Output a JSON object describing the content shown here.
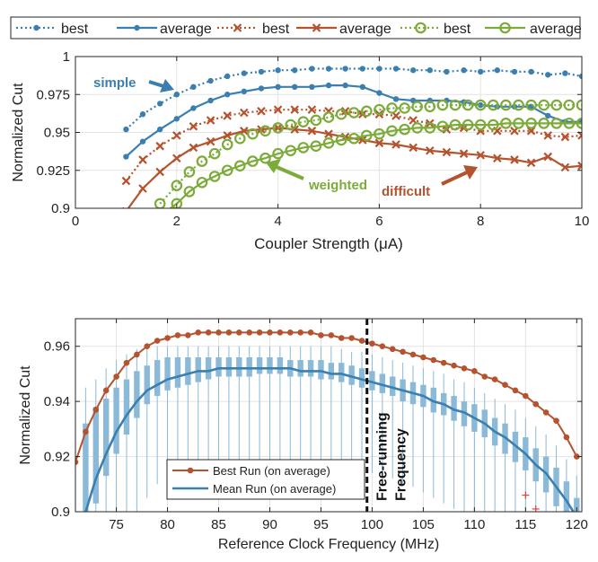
{
  "chart_data": [
    {
      "type": "line",
      "xlabel": "Coupler Strength (μA)",
      "ylabel": "Normalized Cut",
      "xlim": [
        0,
        10
      ],
      "ylim": [
        0.9,
        1.0
      ],
      "xticks": [
        0,
        2,
        4,
        6,
        8,
        10
      ],
      "xtick_labels": [
        "0",
        "2",
        "4",
        "6",
        "8",
        "10"
      ],
      "yticks": [
        0.9,
        0.925,
        0.95,
        0.975,
        1.0
      ],
      "ytick_labels": [
        "0.9",
        "0.925",
        "0.95",
        "0.975",
        "1"
      ],
      "legend_position": "top",
      "series": [
        {
          "name": "best",
          "group": "simple",
          "style": "dotted",
          "marker": "dot",
          "color": "#3b7fb0",
          "x": [
            1.0,
            1.33,
            1.67,
            2.0,
            2.33,
            2.67,
            3.0,
            3.33,
            3.67,
            4.0,
            4.33,
            4.67,
            5.0,
            5.33,
            5.67,
            6.0,
            6.33,
            6.67,
            7.0,
            7.33,
            7.67,
            8.0,
            8.33,
            8.67,
            9.0,
            9.33,
            9.67,
            10.0
          ],
          "y": [
            0.952,
            0.962,
            0.969,
            0.975,
            0.98,
            0.984,
            0.987,
            0.989,
            0.99,
            0.991,
            0.991,
            0.992,
            0.992,
            0.992,
            0.992,
            0.992,
            0.992,
            0.991,
            0.991,
            0.99,
            0.991,
            0.99,
            0.991,
            0.99,
            0.99,
            0.988,
            0.989,
            0.987
          ]
        },
        {
          "name": "average",
          "group": "simple",
          "style": "solid",
          "marker": "dot",
          "color": "#3b7fb0",
          "x": [
            1.0,
            1.33,
            1.67,
            2.0,
            2.33,
            2.67,
            3.0,
            3.33,
            3.67,
            4.0,
            4.33,
            4.67,
            5.0,
            5.33,
            5.67,
            6.0,
            6.33,
            6.67,
            7.0,
            7.33,
            7.67,
            8.0,
            8.33,
            8.67,
            9.0,
            9.33,
            9.67,
            10.0
          ],
          "y": [
            0.934,
            0.944,
            0.952,
            0.959,
            0.966,
            0.971,
            0.975,
            0.977,
            0.979,
            0.98,
            0.98,
            0.98,
            0.981,
            0.981,
            0.98,
            0.976,
            0.972,
            0.971,
            0.971,
            0.971,
            0.97,
            0.968,
            0.967,
            0.967,
            0.967,
            0.961,
            0.957,
            0.957
          ]
        },
        {
          "name": "best",
          "group": "difficult",
          "style": "dotted",
          "marker": "x",
          "color": "#b5532f",
          "x": [
            1.0,
            1.33,
            1.67,
            2.0,
            2.33,
            2.67,
            3.0,
            3.33,
            3.67,
            4.0,
            4.33,
            4.67,
            5.0,
            5.33,
            5.67,
            6.0,
            6.33,
            6.67,
            7.0,
            7.33,
            7.67,
            8.0,
            8.33,
            8.67,
            9.0,
            9.33,
            9.67,
            10.0
          ],
          "y": [
            0.918,
            0.932,
            0.941,
            0.948,
            0.954,
            0.958,
            0.961,
            0.963,
            0.964,
            0.965,
            0.965,
            0.965,
            0.964,
            0.964,
            0.962,
            0.962,
            0.961,
            0.958,
            0.956,
            0.952,
            0.953,
            0.951,
            0.951,
            0.951,
            0.951,
            0.948,
            0.947,
            0.948
          ]
        },
        {
          "name": "average",
          "group": "difficult",
          "style": "solid",
          "marker": "x",
          "color": "#b5532f",
          "x": [
            1.0,
            1.33,
            1.67,
            2.0,
            2.33,
            2.67,
            3.0,
            3.33,
            3.67,
            4.0,
            4.33,
            4.67,
            5.0,
            5.33,
            5.67,
            6.0,
            6.33,
            6.67,
            7.0,
            7.33,
            7.67,
            8.0,
            8.33,
            8.67,
            9.0,
            9.33,
            9.67,
            10.0
          ],
          "y": [
            0.898,
            0.913,
            0.924,
            0.933,
            0.94,
            0.944,
            0.948,
            0.951,
            0.952,
            0.953,
            0.952,
            0.951,
            0.949,
            0.947,
            0.945,
            0.943,
            0.942,
            0.94,
            0.938,
            0.937,
            0.936,
            0.935,
            0.933,
            0.932,
            0.93,
            0.934,
            0.927,
            0.928
          ]
        },
        {
          "name": "best",
          "group": "weighted",
          "style": "dotted",
          "marker": "circle",
          "color": "#7cab3a",
          "x": [
            1.67,
            2.0,
            2.25,
            2.5,
            2.75,
            3.0,
            3.25,
            3.5,
            3.75,
            4.0,
            4.25,
            4.5,
            4.75,
            5.0,
            5.25,
            5.5,
            5.75,
            6.0,
            6.25,
            6.5,
            6.75,
            7.0,
            7.25,
            7.5,
            7.75,
            8.0,
            8.25,
            8.5,
            8.75,
            9.0,
            9.25,
            9.5,
            9.75,
            10.0
          ],
          "y": [
            0.903,
            0.915,
            0.924,
            0.931,
            0.936,
            0.942,
            0.946,
            0.949,
            0.951,
            0.953,
            0.955,
            0.957,
            0.958,
            0.96,
            0.962,
            0.963,
            0.964,
            0.965,
            0.966,
            0.966,
            0.967,
            0.967,
            0.968,
            0.968,
            0.968,
            0.968,
            0.968,
            0.968,
            0.968,
            0.968,
            0.968,
            0.968,
            0.968,
            0.968
          ]
        },
        {
          "name": "average",
          "group": "weighted",
          "style": "solid",
          "marker": "circle",
          "color": "#7cab3a",
          "x": [
            1.67,
            2.0,
            2.25,
            2.5,
            2.75,
            3.0,
            3.25,
            3.5,
            3.75,
            4.0,
            4.25,
            4.5,
            4.75,
            5.0,
            5.25,
            5.5,
            5.75,
            6.0,
            6.25,
            6.5,
            6.75,
            7.0,
            7.25,
            7.5,
            7.75,
            8.0,
            8.25,
            8.5,
            8.75,
            9.0,
            9.25,
            9.5,
            9.75,
            10.0
          ],
          "y": [
            0.895,
            0.903,
            0.911,
            0.917,
            0.921,
            0.925,
            0.928,
            0.931,
            0.933,
            0.936,
            0.938,
            0.94,
            0.941,
            0.943,
            0.945,
            0.946,
            0.948,
            0.949,
            0.951,
            0.952,
            0.953,
            0.953,
            0.954,
            0.955,
            0.955,
            0.955,
            0.955,
            0.956,
            0.956,
            0.956,
            0.956,
            0.956,
            0.956,
            0.956
          ]
        }
      ],
      "annotations": [
        {
          "text": "simple",
          "color": "#3b7fb0"
        },
        {
          "text": "weighted",
          "color": "#7cab3a"
        },
        {
          "text": "difficult",
          "color": "#b5532f"
        }
      ]
    },
    {
      "type": "line",
      "xlabel": "Reference Clock Frequency (MHz)",
      "ylabel": "Normalized Cut",
      "xlim": [
        71,
        120.5
      ],
      "ylim": [
        0.9,
        0.97
      ],
      "xticks": [
        75,
        80,
        85,
        90,
        95,
        100,
        105,
        110,
        115,
        120
      ],
      "xtick_labels": [
        "75",
        "80",
        "85",
        "90",
        "95",
        "100",
        "105",
        "110",
        "115",
        "120"
      ],
      "yticks": [
        0.9,
        0.92,
        0.94,
        0.96
      ],
      "ytick_labels": [
        "0.9",
        "0.92",
        "0.94",
        "0.96"
      ],
      "legend_position": "bottom-left",
      "vline": {
        "x": 99.5,
        "label": "Free-running\nFrequency"
      },
      "series": [
        {
          "name": "Best Run (on average)",
          "color": "#b5532f",
          "marker": "dot",
          "x": [
            71,
            72,
            73,
            74,
            75,
            76,
            77,
            78,
            79,
            80,
            81,
            82,
            83,
            84,
            85,
            86,
            87,
            88,
            89,
            90,
            91,
            92,
            93,
            94,
            95,
            96,
            97,
            98,
            99,
            100,
            101,
            102,
            103,
            104,
            105,
            106,
            107,
            108,
            109,
            110,
            111,
            112,
            113,
            114,
            115,
            116,
            117,
            118,
            119,
            120
          ],
          "y": [
            0.918,
            0.929,
            0.937,
            0.944,
            0.949,
            0.954,
            0.957,
            0.96,
            0.962,
            0.963,
            0.964,
            0.964,
            0.965,
            0.965,
            0.965,
            0.965,
            0.965,
            0.965,
            0.965,
            0.965,
            0.965,
            0.965,
            0.965,
            0.965,
            0.964,
            0.964,
            0.963,
            0.963,
            0.962,
            0.961,
            0.96,
            0.959,
            0.958,
            0.957,
            0.956,
            0.955,
            0.954,
            0.953,
            0.952,
            0.951,
            0.949,
            0.948,
            0.946,
            0.944,
            0.942,
            0.939,
            0.936,
            0.933,
            0.927,
            0.92
          ]
        },
        {
          "name": "Mean Run (on average)",
          "color": "#3b7fb0",
          "marker": "none",
          "x": [
            72,
            73,
            74,
            75,
            76,
            77,
            78,
            79,
            80,
            81,
            82,
            83,
            84,
            85,
            86,
            87,
            88,
            89,
            90,
            91,
            92,
            93,
            94,
            95,
            96,
            97,
            98,
            99,
            100,
            101,
            102,
            103,
            104,
            105,
            106,
            107,
            108,
            109,
            110,
            111,
            112,
            113,
            114,
            115,
            116,
            117,
            118,
            119,
            120
          ],
          "y": [
            0.9,
            0.912,
            0.921,
            0.929,
            0.935,
            0.94,
            0.944,
            0.946,
            0.948,
            0.949,
            0.95,
            0.951,
            0.951,
            0.952,
            0.952,
            0.952,
            0.952,
            0.952,
            0.952,
            0.952,
            0.952,
            0.951,
            0.951,
            0.951,
            0.95,
            0.95,
            0.949,
            0.948,
            0.947,
            0.946,
            0.945,
            0.944,
            0.943,
            0.942,
            0.94,
            0.939,
            0.937,
            0.936,
            0.934,
            0.932,
            0.929,
            0.927,
            0.924,
            0.921,
            0.917,
            0.914,
            0.909,
            0.904,
            0.898
          ]
        },
        {
          "name": "distribution",
          "type": "box",
          "color": "#8bbad8",
          "x": [
            72,
            73,
            74,
            75,
            76,
            77,
            78,
            79,
            80,
            81,
            82,
            83,
            84,
            85,
            86,
            87,
            88,
            89,
            90,
            91,
            92,
            93,
            94,
            95,
            96,
            97,
            98,
            99,
            100,
            101,
            102,
            103,
            104,
            105,
            106,
            107,
            108,
            109,
            110,
            111,
            112,
            113,
            114,
            115,
            116,
            117,
            118,
            119,
            120
          ],
          "q1": [
            0.893,
            0.903,
            0.913,
            0.921,
            0.928,
            0.934,
            0.939,
            0.942,
            0.944,
            0.945,
            0.946,
            0.947,
            0.948,
            0.949,
            0.949,
            0.949,
            0.949,
            0.95,
            0.95,
            0.95,
            0.949,
            0.949,
            0.949,
            0.948,
            0.948,
            0.947,
            0.946,
            0.945,
            0.944,
            0.943,
            0.942,
            0.94,
            0.939,
            0.938,
            0.936,
            0.935,
            0.933,
            0.931,
            0.929,
            0.927,
            0.924,
            0.921,
            0.918,
            0.915,
            0.911,
            0.907,
            0.902,
            0.897,
            0.891
          ],
          "q3": [
            0.932,
            0.938,
            0.941,
            0.945,
            0.948,
            0.951,
            0.953,
            0.955,
            0.956,
            0.956,
            0.956,
            0.956,
            0.956,
            0.956,
            0.956,
            0.956,
            0.956,
            0.956,
            0.956,
            0.956,
            0.955,
            0.955,
            0.955,
            0.955,
            0.954,
            0.954,
            0.953,
            0.952,
            0.951,
            0.95,
            0.949,
            0.948,
            0.947,
            0.946,
            0.945,
            0.943,
            0.942,
            0.94,
            0.939,
            0.937,
            0.934,
            0.932,
            0.929,
            0.927,
            0.923,
            0.92,
            0.916,
            0.911,
            0.905
          ],
          "lo": [
            0.875,
            0.88,
            0.885,
            0.89,
            0.895,
            0.9,
            0.905,
            0.91,
            0.912,
            0.915,
            0.915,
            0.916,
            0.918,
            0.918,
            0.918,
            0.918,
            0.918,
            0.918,
            0.918,
            0.918,
            0.918,
            0.918,
            0.918,
            0.918,
            0.918,
            0.917,
            0.916,
            0.915,
            0.914,
            0.913,
            0.912,
            0.91,
            0.909,
            0.907,
            0.905,
            0.903,
            0.901,
            0.899,
            0.897,
            0.895,
            0.893,
            0.89,
            0.888,
            0.885,
            0.88,
            0.88,
            0.88,
            0.88,
            0.88
          ],
          "hi": [
            0.945,
            0.948,
            0.952,
            0.955,
            0.957,
            0.959,
            0.96,
            0.96,
            0.96,
            0.96,
            0.96,
            0.96,
            0.96,
            0.96,
            0.96,
            0.96,
            0.96,
            0.96,
            0.96,
            0.96,
            0.96,
            0.96,
            0.96,
            0.96,
            0.96,
            0.959,
            0.958,
            0.958,
            0.957,
            0.956,
            0.955,
            0.954,
            0.953,
            0.952,
            0.951,
            0.95,
            0.948,
            0.947,
            0.945,
            0.943,
            0.941,
            0.939,
            0.937,
            0.934,
            0.931,
            0.928,
            0.924,
            0.919,
            0.913
          ]
        },
        {
          "name": "outliers",
          "type": "scatter",
          "marker": "+",
          "color": "#e0403a",
          "x": [
            115,
            116
          ],
          "y": [
            0.906,
            0.901
          ]
        }
      ]
    }
  ]
}
